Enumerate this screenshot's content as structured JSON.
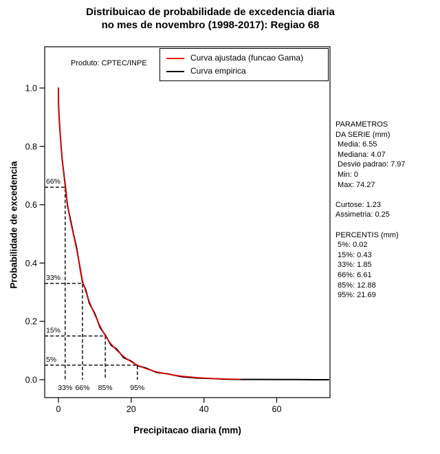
{
  "title": {
    "line1": "Distribuicao de probabilidade de excedencia diaria",
    "line2": "no mes de novembro (1998-2017): Regiao 68"
  },
  "plot_note": "Produto: CPTEC/INPE",
  "legend": {
    "items": [
      {
        "label": "Curva ajustada (funcao Gama)",
        "color": "#ff0000"
      },
      {
        "label": "Curva empirica",
        "color": "#000000"
      }
    ]
  },
  "axes": {
    "x_label": "Precipitacao diaria (mm)",
    "y_label": "Probabilidade de excedencia",
    "x_tick_labels": [
      "0",
      "20",
      "40",
      "60"
    ],
    "y_tick_labels": [
      "0.0",
      "0.2",
      "0.4",
      "0.6",
      "0.8",
      "1.0"
    ]
  },
  "stats_panel": {
    "lines": [
      "PARAMETROS",
      "DA SERIE (mm)",
      " Media: 6.55",
      " Mediana: 4.07",
      " Desvio padrao: 7.97",
      " Min: 0",
      " Max: 74.27",
      "",
      "Curtose: 1.23",
      "Assimetria: 0.25",
      "",
      "PERCENTIS (mm)",
      " 5%: 0.02",
      " 15%: 0.43",
      " 33%: 1.85",
      " 66%: 6.61",
      " 85%: 12.88",
      " 95%: 21.69"
    ]
  },
  "chart_data": {
    "type": "line",
    "title": "Distribuicao de probabilidade de excedencia diaria no mes de novembro (1998-2017): Regiao 68",
    "xlabel": "Precipitacao diaria (mm)",
    "ylabel": "Probabilidade de excedencia",
    "xlim": [
      0,
      74.27
    ],
    "ylim": [
      0,
      1.0
    ],
    "x_ticks": [
      0,
      20,
      40,
      60
    ],
    "y_ticks": [
      0.0,
      0.2,
      0.4,
      0.6,
      0.8,
      1.0
    ],
    "grid": false,
    "legend_position": "top-right-inside",
    "series": [
      {
        "name": "Curva ajustada (funcao Gama)",
        "color": "#ff0000",
        "x": [
          0,
          0.02,
          0.1,
          0.25,
          0.43,
          0.7,
          1.0,
          1.4,
          1.85,
          2.5,
          3.2,
          4.07,
          5,
          6,
          6.61,
          7.5,
          8.5,
          10,
          11.5,
          12.88,
          14.5,
          16,
          18,
          20,
          21.69,
          24,
          27,
          30,
          34,
          38,
          42,
          46,
          50
        ],
        "y": [
          1.0,
          0.95,
          0.92,
          0.885,
          0.85,
          0.8,
          0.762,
          0.712,
          0.66,
          0.603,
          0.549,
          0.5,
          0.445,
          0.385,
          0.34,
          0.302,
          0.268,
          0.222,
          0.183,
          0.15,
          0.122,
          0.101,
          0.079,
          0.061,
          0.05,
          0.038,
          0.027,
          0.019,
          0.012,
          0.0075,
          0.0045,
          0.0025,
          0.0015
        ]
      },
      {
        "name": "Curva empirica",
        "color": "#000000",
        "x": [
          0,
          0.02,
          0.1,
          0.25,
          0.43,
          0.7,
          1.0,
          1.4,
          1.85,
          2.5,
          3.2,
          4.07,
          5,
          6,
          6.61,
          7.5,
          8.5,
          10,
          11.5,
          12.88,
          14.5,
          16,
          18,
          20,
          21.69,
          24,
          27,
          30,
          34,
          38,
          42,
          46,
          50,
          55,
          60,
          65,
          70,
          74.27
        ],
        "y": [
          1.0,
          0.952,
          0.923,
          0.888,
          0.851,
          0.806,
          0.758,
          0.716,
          0.668,
          0.597,
          0.556,
          0.503,
          0.452,
          0.379,
          0.335,
          0.308,
          0.262,
          0.227,
          0.178,
          0.153,
          0.118,
          0.105,
          0.075,
          0.064,
          0.048,
          0.04,
          0.025,
          0.02,
          0.01,
          0.006,
          0.004,
          0.002,
          0.001,
          0.001,
          0.0005,
          0.0005,
          0,
          0
        ]
      }
    ],
    "percentile_guides": [
      {
        "exceedance": 0.66,
        "precip_mm": 1.85,
        "y_label": "66%",
        "x_label": "33%"
      },
      {
        "exceedance": 0.33,
        "precip_mm": 6.61,
        "y_label": "33%",
        "x_label": "66%"
      },
      {
        "exceedance": 0.15,
        "precip_mm": 12.88,
        "y_label": "15%",
        "x_label": "85%"
      },
      {
        "exceedance": 0.05,
        "precip_mm": 21.69,
        "y_label": "5%",
        "x_label": "95%"
      }
    ],
    "stats": {
      "media": 6.55,
      "mediana": 4.07,
      "desvio_padrao": 7.97,
      "min": 0,
      "max": 74.27,
      "curtose": 1.23,
      "assimetria": 0.25,
      "percentis": {
        "5": 0.02,
        "15": 0.43,
        "33": 1.85,
        "66": 6.61,
        "85": 12.88,
        "95": 21.69
      }
    }
  }
}
